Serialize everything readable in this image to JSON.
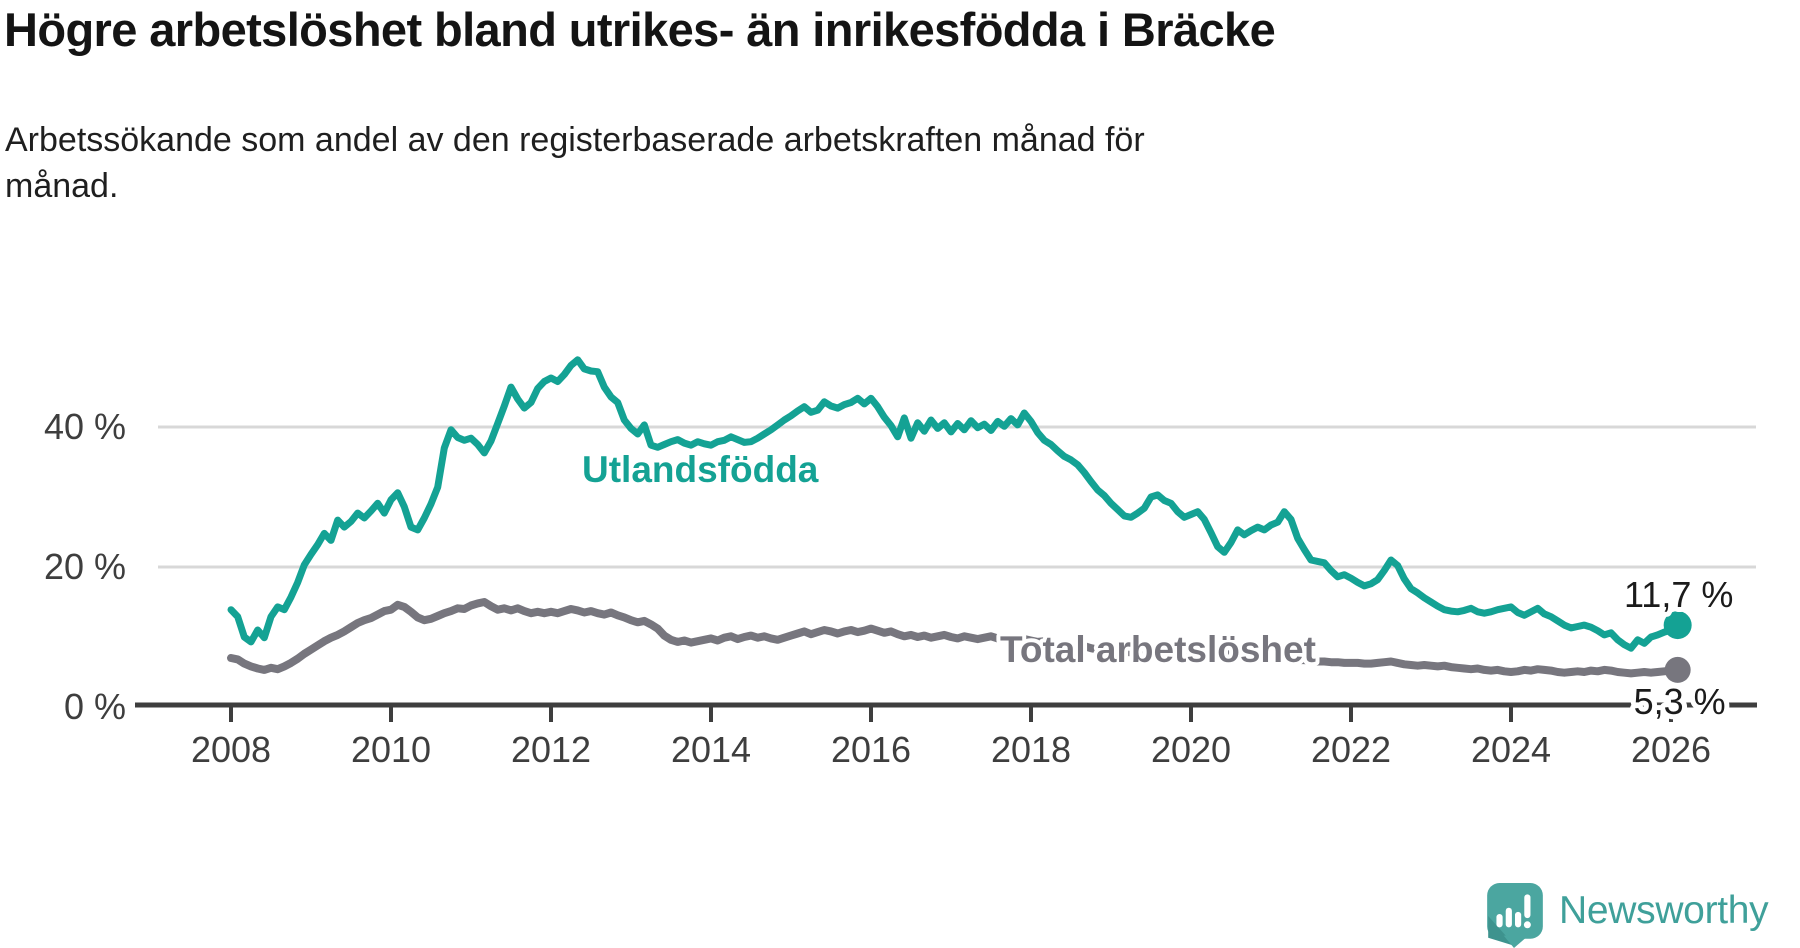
{
  "header": {
    "title": "Högre arbetslöshet bland utrikes- än inrikesfödda i Bräcke",
    "subtitle": "Arbetssökande som andel av den registerbaserade arbetskraften månad för\nmånad."
  },
  "footer": {
    "brand": "Newsworthy"
  },
  "colors": {
    "foreign_born_line": "#14a294",
    "total_line": "#77767e",
    "grid": "#d8d8d8",
    "axis": "#3e3e3e",
    "end_label_text": "#1b1b1b",
    "logo_icon": "#4ba6a0",
    "logo_text": "#3fa09a"
  },
  "chart_data": {
    "type": "line",
    "title": "Högre arbetslöshet bland utrikes- än inrikesfödda i Bräcke",
    "subtitle": "Arbetssökande som andel av den registerbaserade arbetskraften månad för månad.",
    "xlabel": "",
    "ylabel": "",
    "unit": "%",
    "grid": "horizontal",
    "legend_position": "inline-labels",
    "x_start": 2008.0,
    "x_step": 0.0833333,
    "xlim": [
      2008,
      2026.6
    ],
    "ylim": [
      0,
      52
    ],
    "x_ticks": [
      "2008",
      "2010",
      "2012",
      "2014",
      "2016",
      "2018",
      "2020",
      "2022",
      "2024",
      "2026"
    ],
    "x_tick_years": [
      2008,
      2010,
      2012,
      2014,
      2016,
      2018,
      2020,
      2022,
      2024,
      2026
    ],
    "y_ticks": [
      {
        "value": 40,
        "label": "40 %"
      },
      {
        "value": 20,
        "label": "20 %"
      },
      {
        "value": 0,
        "label": "0 %"
      }
    ],
    "series": [
      {
        "name": "Utlandsfödda",
        "color": "#14a294",
        "end_label": "11,7 %",
        "end_value": 11.7,
        "values": [
          13.9,
          12.9,
          10.0,
          9.3,
          11.0,
          9.9,
          12.9,
          14.3,
          13.9,
          15.7,
          17.8,
          20.3,
          21.8,
          23.2,
          24.8,
          23.8,
          26.7,
          25.7,
          26.5,
          27.7,
          27.0,
          28.0,
          29.1,
          27.7,
          29.6,
          30.6,
          28.6,
          25.7,
          25.3,
          27.0,
          29.0,
          31.4,
          37.0,
          39.6,
          38.5,
          38.1,
          38.4,
          37.5,
          36.3,
          38.0,
          40.5,
          43.0,
          45.7,
          44.0,
          42.7,
          43.5,
          45.5,
          46.5,
          47.0,
          46.5,
          47.5,
          48.8,
          49.6,
          48.3,
          48.0,
          47.9,
          45.7,
          44.3,
          43.5,
          41.0,
          39.8,
          39.0,
          40.3,
          37.4,
          37.1,
          37.5,
          37.9,
          38.2,
          37.7,
          37.4,
          37.9,
          37.6,
          37.4,
          37.9,
          38.1,
          38.6,
          38.2,
          37.8,
          37.9,
          38.4,
          39.0,
          39.6,
          40.3,
          41.0,
          41.6,
          42.3,
          42.9,
          42.1,
          42.4,
          43.6,
          43.0,
          42.7,
          43.2,
          43.5,
          44.1,
          43.3,
          44.1,
          42.9,
          41.4,
          40.2,
          38.6,
          41.3,
          38.4,
          40.6,
          39.4,
          41.0,
          39.8,
          40.6,
          39.3,
          40.5,
          39.6,
          40.9,
          39.9,
          40.4,
          39.5,
          40.8,
          40.1,
          41.2,
          40.3,
          42.0,
          40.8,
          39.2,
          38.1,
          37.5,
          36.6,
          35.8,
          35.3,
          34.6,
          33.5,
          32.2,
          31.0,
          30.2,
          29.1,
          28.2,
          27.3,
          27.1,
          27.7,
          28.4,
          30.0,
          30.3,
          29.5,
          29.1,
          27.9,
          27.1,
          27.5,
          27.9,
          26.8,
          24.9,
          22.9,
          22.1,
          23.5,
          25.3,
          24.6,
          25.2,
          25.7,
          25.3,
          26.0,
          26.4,
          27.9,
          26.8,
          24.1,
          22.5,
          21.0,
          20.8,
          20.6,
          19.5,
          18.6,
          18.9,
          18.4,
          17.8,
          17.3,
          17.6,
          18.2,
          19.5,
          21.0,
          20.2,
          18.3,
          16.9,
          16.3,
          15.6,
          15.0,
          14.4,
          13.9,
          13.7,
          13.6,
          13.8,
          14.1,
          13.6,
          13.4,
          13.6,
          13.9,
          14.1,
          14.3,
          13.5,
          13.1,
          13.6,
          14.1,
          13.3,
          12.9,
          12.3,
          11.7,
          11.3,
          11.5,
          11.7,
          11.4,
          10.9,
          10.3,
          10.6,
          9.6,
          8.9,
          8.4,
          9.6,
          9.1,
          10.0,
          10.3,
          10.7,
          11.0,
          11.7
        ]
      },
      {
        "name": "Total arbetslöshet",
        "color": "#77767e",
        "end_label": "5,3 %",
        "end_value": 5.3,
        "values": [
          7.0,
          6.8,
          6.2,
          5.8,
          5.5,
          5.3,
          5.6,
          5.4,
          5.8,
          6.3,
          6.9,
          7.6,
          8.2,
          8.8,
          9.4,
          9.9,
          10.3,
          10.8,
          11.4,
          12.0,
          12.4,
          12.7,
          13.2,
          13.7,
          13.9,
          14.6,
          14.3,
          13.6,
          12.8,
          12.4,
          12.6,
          13.0,
          13.4,
          13.7,
          14.1,
          14.0,
          14.5,
          14.8,
          15.0,
          14.4,
          13.9,
          14.1,
          13.8,
          14.1,
          13.7,
          13.4,
          13.6,
          13.4,
          13.6,
          13.4,
          13.7,
          14.0,
          13.8,
          13.5,
          13.7,
          13.4,
          13.2,
          13.5,
          13.1,
          12.8,
          12.4,
          12.1,
          12.3,
          11.8,
          11.2,
          10.2,
          9.6,
          9.3,
          9.5,
          9.2,
          9.4,
          9.6,
          9.8,
          9.5,
          9.9,
          10.1,
          9.7,
          10.0,
          10.2,
          9.9,
          10.1,
          9.8,
          9.6,
          9.9,
          10.2,
          10.5,
          10.8,
          10.4,
          10.7,
          11.0,
          10.8,
          10.5,
          10.8,
          11.0,
          10.7,
          10.9,
          11.2,
          10.9,
          10.6,
          10.8,
          10.4,
          10.1,
          10.3,
          10.0,
          10.2,
          9.9,
          10.1,
          10.3,
          10.0,
          9.8,
          10.1,
          9.9,
          9.7,
          9.9,
          10.1,
          9.8,
          9.6,
          9.8,
          9.5,
          9.7,
          9.5,
          9.3,
          9.4,
          9.1,
          8.9,
          9.0,
          8.8,
          8.6,
          8.7,
          8.4,
          8.2,
          8.3,
          8.1,
          8.0,
          7.9,
          7.8,
          7.7,
          7.6,
          7.5,
          7.5,
          7.4,
          7.3,
          7.3,
          7.2,
          7.2,
          7.3,
          7.5,
          7.8,
          7.7,
          7.6,
          7.5,
          7.4,
          7.3,
          7.2,
          7.1,
          7.0,
          7.0,
          6.9,
          6.9,
          6.8,
          6.7,
          6.7,
          6.6,
          6.5,
          6.5,
          6.4,
          6.4,
          6.3,
          6.3,
          6.3,
          6.2,
          6.2,
          6.3,
          6.4,
          6.5,
          6.3,
          6.1,
          6.0,
          5.9,
          6.0,
          5.9,
          5.8,
          5.9,
          5.7,
          5.6,
          5.5,
          5.4,
          5.5,
          5.3,
          5.2,
          5.3,
          5.1,
          5.0,
          5.1,
          5.3,
          5.2,
          5.4,
          5.3,
          5.2,
          5.0,
          4.9,
          5.0,
          5.1,
          5.0,
          5.2,
          5.1,
          5.3,
          5.2,
          5.0,
          4.9,
          4.8,
          4.9,
          5.0,
          4.9,
          5.0,
          5.1,
          5.2,
          5.3
        ]
      }
    ]
  }
}
